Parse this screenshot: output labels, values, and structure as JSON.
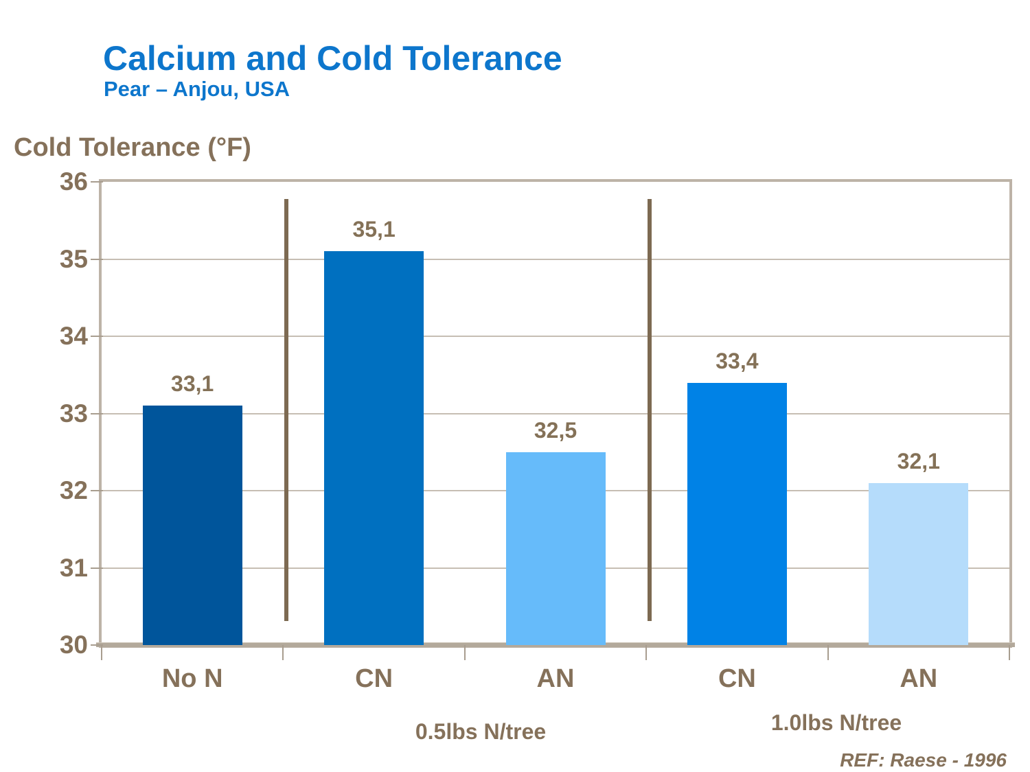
{
  "header": {
    "title": "Calcium and Cold Tolerance",
    "subtitle": "Pear – Anjou,  USA"
  },
  "footer": {
    "reference": "REF: Raese - 1996"
  },
  "colors": {
    "title_blue": "#0d76cc",
    "text_brown": "#85715a",
    "separator_brown": "#7d6a52",
    "plot_border": "#bdb3a7",
    "gridline": "#c6beb3",
    "axis": "#b3a99b"
  },
  "chart_data": {
    "type": "bar",
    "title": "Calcium and Cold Tolerance",
    "subtitle": "Pear – Anjou, USA",
    "ylabel": "Cold Tolerance (°F)",
    "xlabel": "",
    "categories": [
      "No N",
      "CN",
      "AN",
      "CN",
      "AN"
    ],
    "values": [
      33.1,
      35.1,
      32.5,
      33.4,
      32.1
    ],
    "value_labels": [
      "33,1",
      "35,1",
      "32,5",
      "33,4",
      "32,1"
    ],
    "bar_colors": [
      "#00559b",
      "#0070c0",
      "#66bbfa",
      "#0082e6",
      "#b5dcfb"
    ],
    "ylim": [
      30,
      36
    ],
    "yticks": [
      30,
      31,
      32,
      33,
      34,
      35,
      36
    ],
    "grid": true,
    "legend": "none",
    "group_labels": [
      "0.5lbs N/tree",
      "1.0lbs N/tree"
    ],
    "group_ranges": [
      [
        1,
        2
      ],
      [
        3,
        4
      ]
    ],
    "separator_boundaries": [
      1,
      3
    ],
    "annotation": "REF: Raese - 1996"
  }
}
